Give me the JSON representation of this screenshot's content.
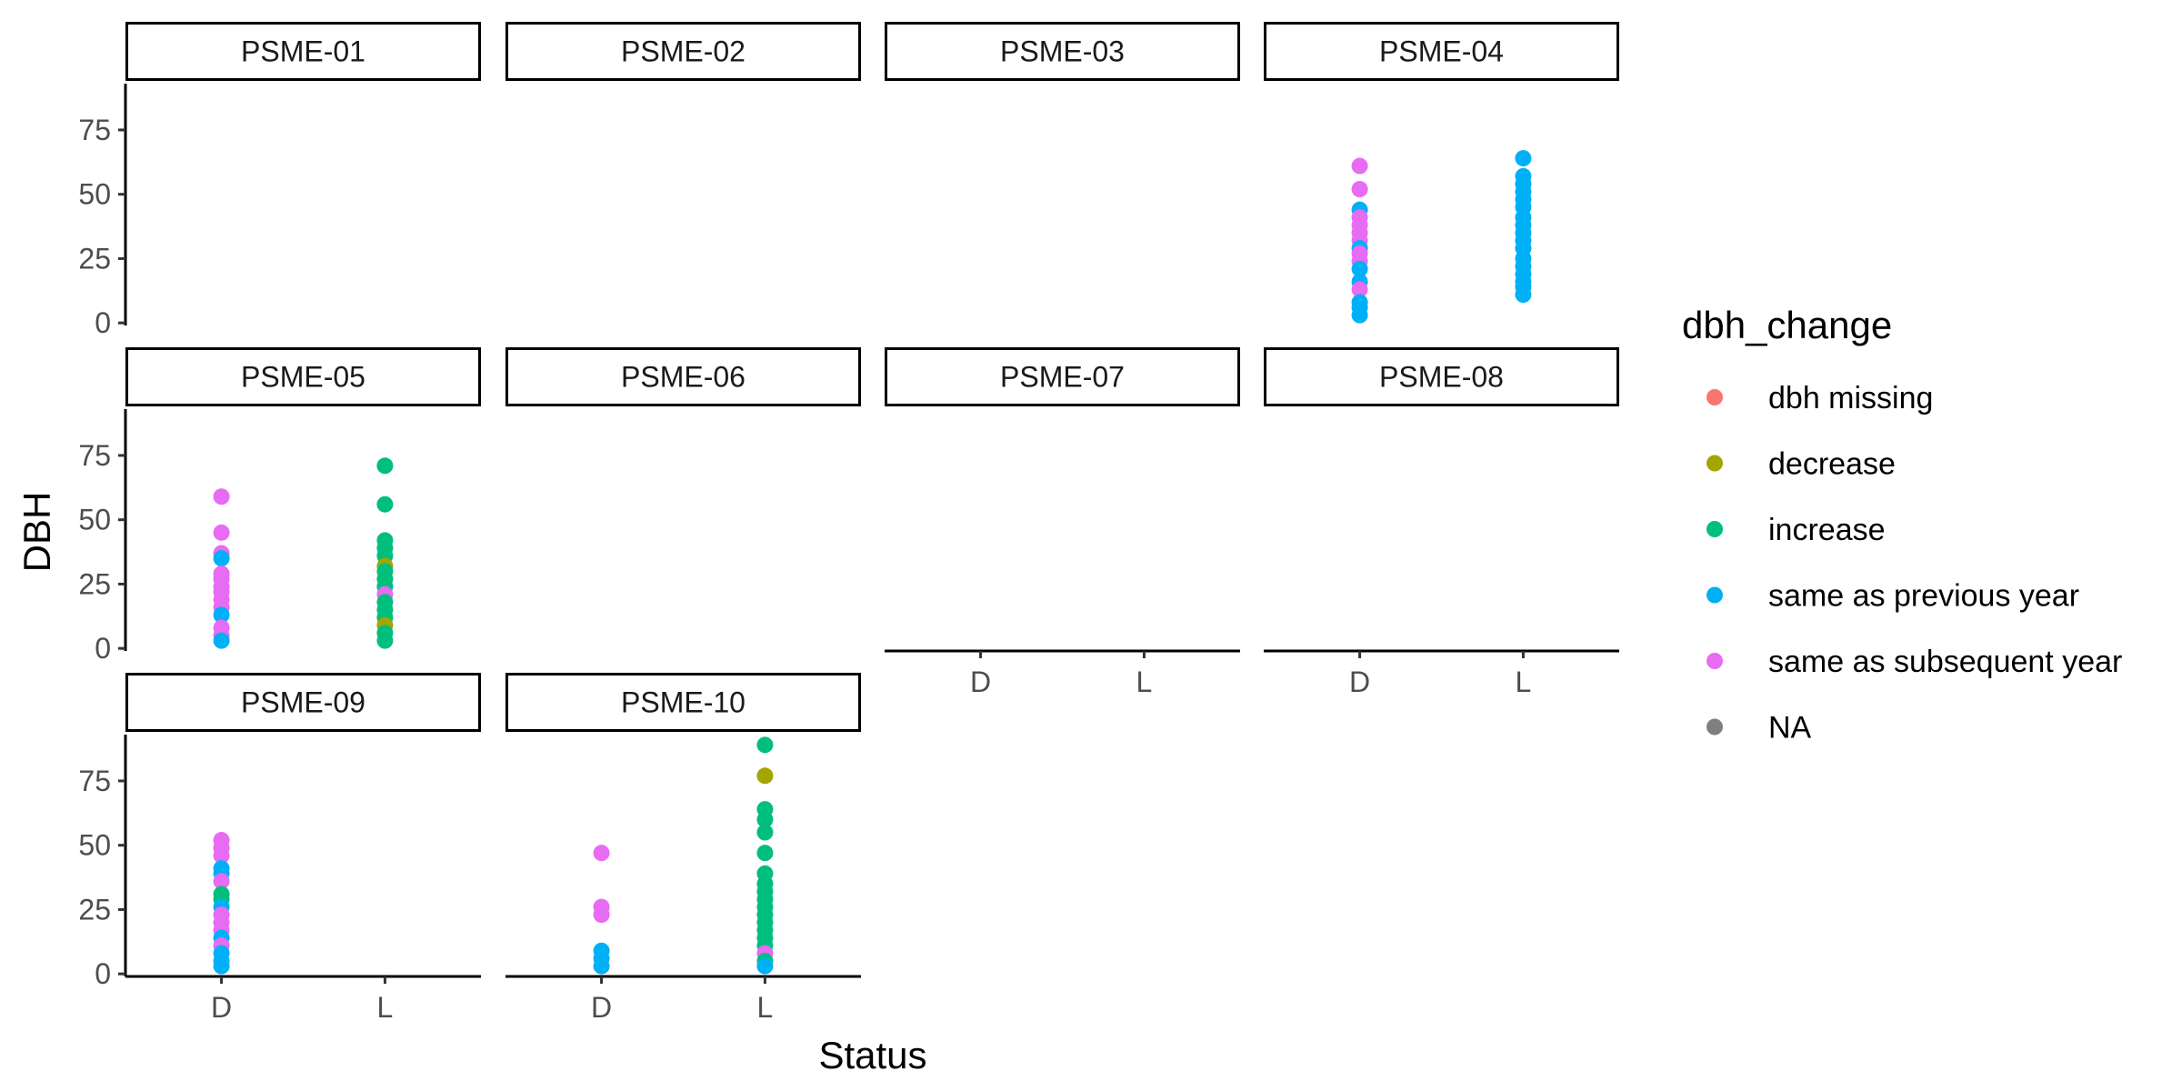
{
  "chart_data": {
    "type": "scatter",
    "xlabel": "Status",
    "ylabel": "DBH",
    "x_categories": [
      "D",
      "L"
    ],
    "y_ticks": [
      0,
      25,
      50,
      75
    ],
    "ylim": [
      -1,
      93
    ],
    "facet_layout": "4 columns x 3 rows",
    "legend": {
      "title": "dbh_change",
      "placement": "right",
      "items": [
        {
          "label": "dbh missing",
          "color": "#F8766D"
        },
        {
          "label": "decrease",
          "color": "#A3A500"
        },
        {
          "label": "increase",
          "color": "#00BF7D"
        },
        {
          "label": "same as previous year",
          "color": "#00B0F6"
        },
        {
          "label": "same as subsequent year",
          "color": "#E76BF3"
        },
        {
          "label": "NA",
          "color": "#7F7F7F"
        }
      ]
    },
    "facets": [
      {
        "label": "PSME-01",
        "points": []
      },
      {
        "label": "PSME-02",
        "points": []
      },
      {
        "label": "PSME-03",
        "points": []
      },
      {
        "label": "PSME-04",
        "points": [
          {
            "x": "D",
            "y": 61,
            "group": "same as subsequent year"
          },
          {
            "x": "D",
            "y": 52,
            "group": "same as subsequent year"
          },
          {
            "x": "D",
            "y": 44,
            "group": "same as previous year"
          },
          {
            "x": "D",
            "y": 41,
            "group": "same as subsequent year"
          },
          {
            "x": "D",
            "y": 38,
            "group": "same as subsequent year"
          },
          {
            "x": "D",
            "y": 35,
            "group": "same as subsequent year"
          },
          {
            "x": "D",
            "y": 32,
            "group": "same as subsequent year"
          },
          {
            "x": "D",
            "y": 29,
            "group": "same as previous year"
          },
          {
            "x": "D",
            "y": 27,
            "group": "same as subsequent year"
          },
          {
            "x": "D",
            "y": 24,
            "group": "same as subsequent year"
          },
          {
            "x": "D",
            "y": 21,
            "group": "same as previous year"
          },
          {
            "x": "D",
            "y": 16,
            "group": "same as previous year"
          },
          {
            "x": "D",
            "y": 13,
            "group": "same as subsequent year"
          },
          {
            "x": "D",
            "y": 8,
            "group": "same as previous year"
          },
          {
            "x": "D",
            "y": 6,
            "group": "same as previous year"
          },
          {
            "x": "D",
            "y": 3,
            "group": "same as previous year"
          },
          {
            "x": "L",
            "y": 64,
            "group": "same as previous year"
          },
          {
            "x": "L",
            "y": 57,
            "group": "same as previous year"
          },
          {
            "x": "L",
            "y": 54,
            "group": "same as previous year"
          },
          {
            "x": "L",
            "y": 51,
            "group": "same as previous year"
          },
          {
            "x": "L",
            "y": 48,
            "group": "same as previous year"
          },
          {
            "x": "L",
            "y": 45,
            "group": "same as previous year"
          },
          {
            "x": "L",
            "y": 41,
            "group": "same as previous year"
          },
          {
            "x": "L",
            "y": 38,
            "group": "same as previous year"
          },
          {
            "x": "L",
            "y": 35,
            "group": "same as previous year"
          },
          {
            "x": "L",
            "y": 32,
            "group": "same as previous year"
          },
          {
            "x": "L",
            "y": 29,
            "group": "same as previous year"
          },
          {
            "x": "L",
            "y": 25,
            "group": "same as previous year"
          },
          {
            "x": "L",
            "y": 22,
            "group": "same as previous year"
          },
          {
            "x": "L",
            "y": 19,
            "group": "same as previous year"
          },
          {
            "x": "L",
            "y": 16,
            "group": "same as previous year"
          },
          {
            "x": "L",
            "y": 14,
            "group": "same as previous year"
          },
          {
            "x": "L",
            "y": 11,
            "group": "same as previous year"
          }
        ]
      },
      {
        "label": "PSME-05",
        "points": [
          {
            "x": "D",
            "y": 59,
            "group": "same as subsequent year"
          },
          {
            "x": "D",
            "y": 45,
            "group": "same as subsequent year"
          },
          {
            "x": "D",
            "y": 37,
            "group": "same as subsequent year"
          },
          {
            "x": "D",
            "y": 35,
            "group": "same as previous year"
          },
          {
            "x": "D",
            "y": 29,
            "group": "same as subsequent year"
          },
          {
            "x": "D",
            "y": 27,
            "group": "same as subsequent year"
          },
          {
            "x": "D",
            "y": 24,
            "group": "same as subsequent year"
          },
          {
            "x": "D",
            "y": 22,
            "group": "same as subsequent year"
          },
          {
            "x": "D",
            "y": 19,
            "group": "same as subsequent year"
          },
          {
            "x": "D",
            "y": 16,
            "group": "same as subsequent year"
          },
          {
            "x": "D",
            "y": 13,
            "group": "same as previous year"
          },
          {
            "x": "D",
            "y": 8,
            "group": "same as subsequent year"
          },
          {
            "x": "D",
            "y": 5,
            "group": "same as subsequent year"
          },
          {
            "x": "D",
            "y": 3,
            "group": "same as previous year"
          },
          {
            "x": "L",
            "y": 71,
            "group": "increase"
          },
          {
            "x": "L",
            "y": 56,
            "group": "increase"
          },
          {
            "x": "L",
            "y": 42,
            "group": "increase"
          },
          {
            "x": "L",
            "y": 39,
            "group": "increase"
          },
          {
            "x": "L",
            "y": 36,
            "group": "increase"
          },
          {
            "x": "L",
            "y": 32,
            "group": "decrease"
          },
          {
            "x": "L",
            "y": 30,
            "group": "increase"
          },
          {
            "x": "L",
            "y": 27,
            "group": "increase"
          },
          {
            "x": "L",
            "y": 24,
            "group": "increase"
          },
          {
            "x": "L",
            "y": 21,
            "group": "same as subsequent year"
          },
          {
            "x": "L",
            "y": 18,
            "group": "increase"
          },
          {
            "x": "L",
            "y": 15,
            "group": "increase"
          },
          {
            "x": "L",
            "y": 12,
            "group": "increase"
          },
          {
            "x": "L",
            "y": 9,
            "group": "decrease"
          },
          {
            "x": "L",
            "y": 6,
            "group": "increase"
          },
          {
            "x": "L",
            "y": 3,
            "group": "increase"
          }
        ]
      },
      {
        "label": "PSME-06",
        "points": []
      },
      {
        "label": "PSME-07",
        "points": []
      },
      {
        "label": "PSME-08",
        "points": []
      },
      {
        "label": "PSME-09",
        "points": [
          {
            "x": "D",
            "y": 52,
            "group": "same as subsequent year"
          },
          {
            "x": "D",
            "y": 49,
            "group": "same as subsequent year"
          },
          {
            "x": "D",
            "y": 46,
            "group": "same as subsequent year"
          },
          {
            "x": "D",
            "y": 41,
            "group": "same as previous year"
          },
          {
            "x": "D",
            "y": 39,
            "group": "same as previous year"
          },
          {
            "x": "D",
            "y": 36,
            "group": "same as subsequent year"
          },
          {
            "x": "D",
            "y": 31,
            "group": "increase"
          },
          {
            "x": "D",
            "y": 29,
            "group": "increase"
          },
          {
            "x": "D",
            "y": 26,
            "group": "same as previous year"
          },
          {
            "x": "D",
            "y": 23,
            "group": "same as subsequent year"
          },
          {
            "x": "D",
            "y": 20,
            "group": "same as subsequent year"
          },
          {
            "x": "D",
            "y": 17,
            "group": "same as subsequent year"
          },
          {
            "x": "D",
            "y": 14,
            "group": "same as previous year"
          },
          {
            "x": "D",
            "y": 11,
            "group": "same as subsequent year"
          },
          {
            "x": "D",
            "y": 8,
            "group": "same as previous year"
          },
          {
            "x": "D",
            "y": 5,
            "group": "same as previous year"
          },
          {
            "x": "D",
            "y": 3,
            "group": "same as previous year"
          }
        ]
      },
      {
        "label": "PSME-10",
        "points": [
          {
            "x": "D",
            "y": 47,
            "group": "same as subsequent year"
          },
          {
            "x": "D",
            "y": 26,
            "group": "same as subsequent year"
          },
          {
            "x": "D",
            "y": 23,
            "group": "same as subsequent year"
          },
          {
            "x": "D",
            "y": 9,
            "group": "same as previous year"
          },
          {
            "x": "D",
            "y": 6,
            "group": "same as previous year"
          },
          {
            "x": "D",
            "y": 3,
            "group": "same as previous year"
          },
          {
            "x": "L",
            "y": 89,
            "group": "increase"
          },
          {
            "x": "L",
            "y": 77,
            "group": "decrease"
          },
          {
            "x": "L",
            "y": 64,
            "group": "increase"
          },
          {
            "x": "L",
            "y": 60,
            "group": "increase"
          },
          {
            "x": "L",
            "y": 55,
            "group": "increase"
          },
          {
            "x": "L",
            "y": 47,
            "group": "increase"
          },
          {
            "x": "L",
            "y": 39,
            "group": "increase"
          },
          {
            "x": "L",
            "y": 35,
            "group": "increase"
          },
          {
            "x": "L",
            "y": 32,
            "group": "increase"
          },
          {
            "x": "L",
            "y": 29,
            "group": "increase"
          },
          {
            "x": "L",
            "y": 26,
            "group": "increase"
          },
          {
            "x": "L",
            "y": 23,
            "group": "increase"
          },
          {
            "x": "L",
            "y": 20,
            "group": "increase"
          },
          {
            "x": "L",
            "y": 17,
            "group": "increase"
          },
          {
            "x": "L",
            "y": 14,
            "group": "increase"
          },
          {
            "x": "L",
            "y": 11,
            "group": "increase"
          },
          {
            "x": "L",
            "y": 8,
            "group": "same as subsequent year"
          },
          {
            "x": "L",
            "y": 5,
            "group": "increase"
          },
          {
            "x": "L",
            "y": 3,
            "group": "same as previous year"
          }
        ]
      }
    ]
  }
}
